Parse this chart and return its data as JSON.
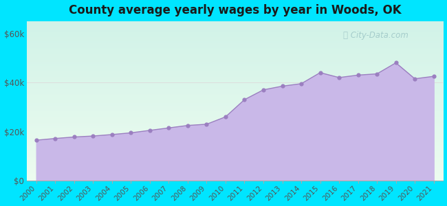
{
  "title": "County average yearly wages by year in Woods, OK",
  "years": [
    2000,
    2001,
    2002,
    2003,
    2004,
    2005,
    2006,
    2007,
    2008,
    2009,
    2010,
    2011,
    2012,
    2013,
    2014,
    2015,
    2016,
    2017,
    2018,
    2019,
    2020,
    2021
  ],
  "wages": [
    16500,
    17200,
    17800,
    18200,
    18800,
    19500,
    20500,
    21500,
    22500,
    23000,
    26000,
    33000,
    37000,
    38500,
    39500,
    44000,
    42000,
    43000,
    43500,
    48000,
    41500,
    42500
  ],
  "y_ticks": [
    0,
    20000,
    40000,
    60000
  ],
  "y_tick_labels": [
    "$0",
    "$20k",
    "$40k",
    "$60k"
  ],
  "ylim": [
    0,
    65000
  ],
  "fill_color": "#c9b8e8",
  "line_color": "#9b7fc0",
  "dot_color": "#9b7fc0",
  "bg_color_outer": "#00e5ff",
  "title_color": "#1a1a1a",
  "title_fontsize": 12,
  "watermark_text": "City-Data.com",
  "watermark_color": "#a0c8c8",
  "tick_color": "#555555",
  "grid_color": "#dddddd",
  "chart_bg_top": "#e0f5f0",
  "chart_bg_bottom": "#f5fff5"
}
